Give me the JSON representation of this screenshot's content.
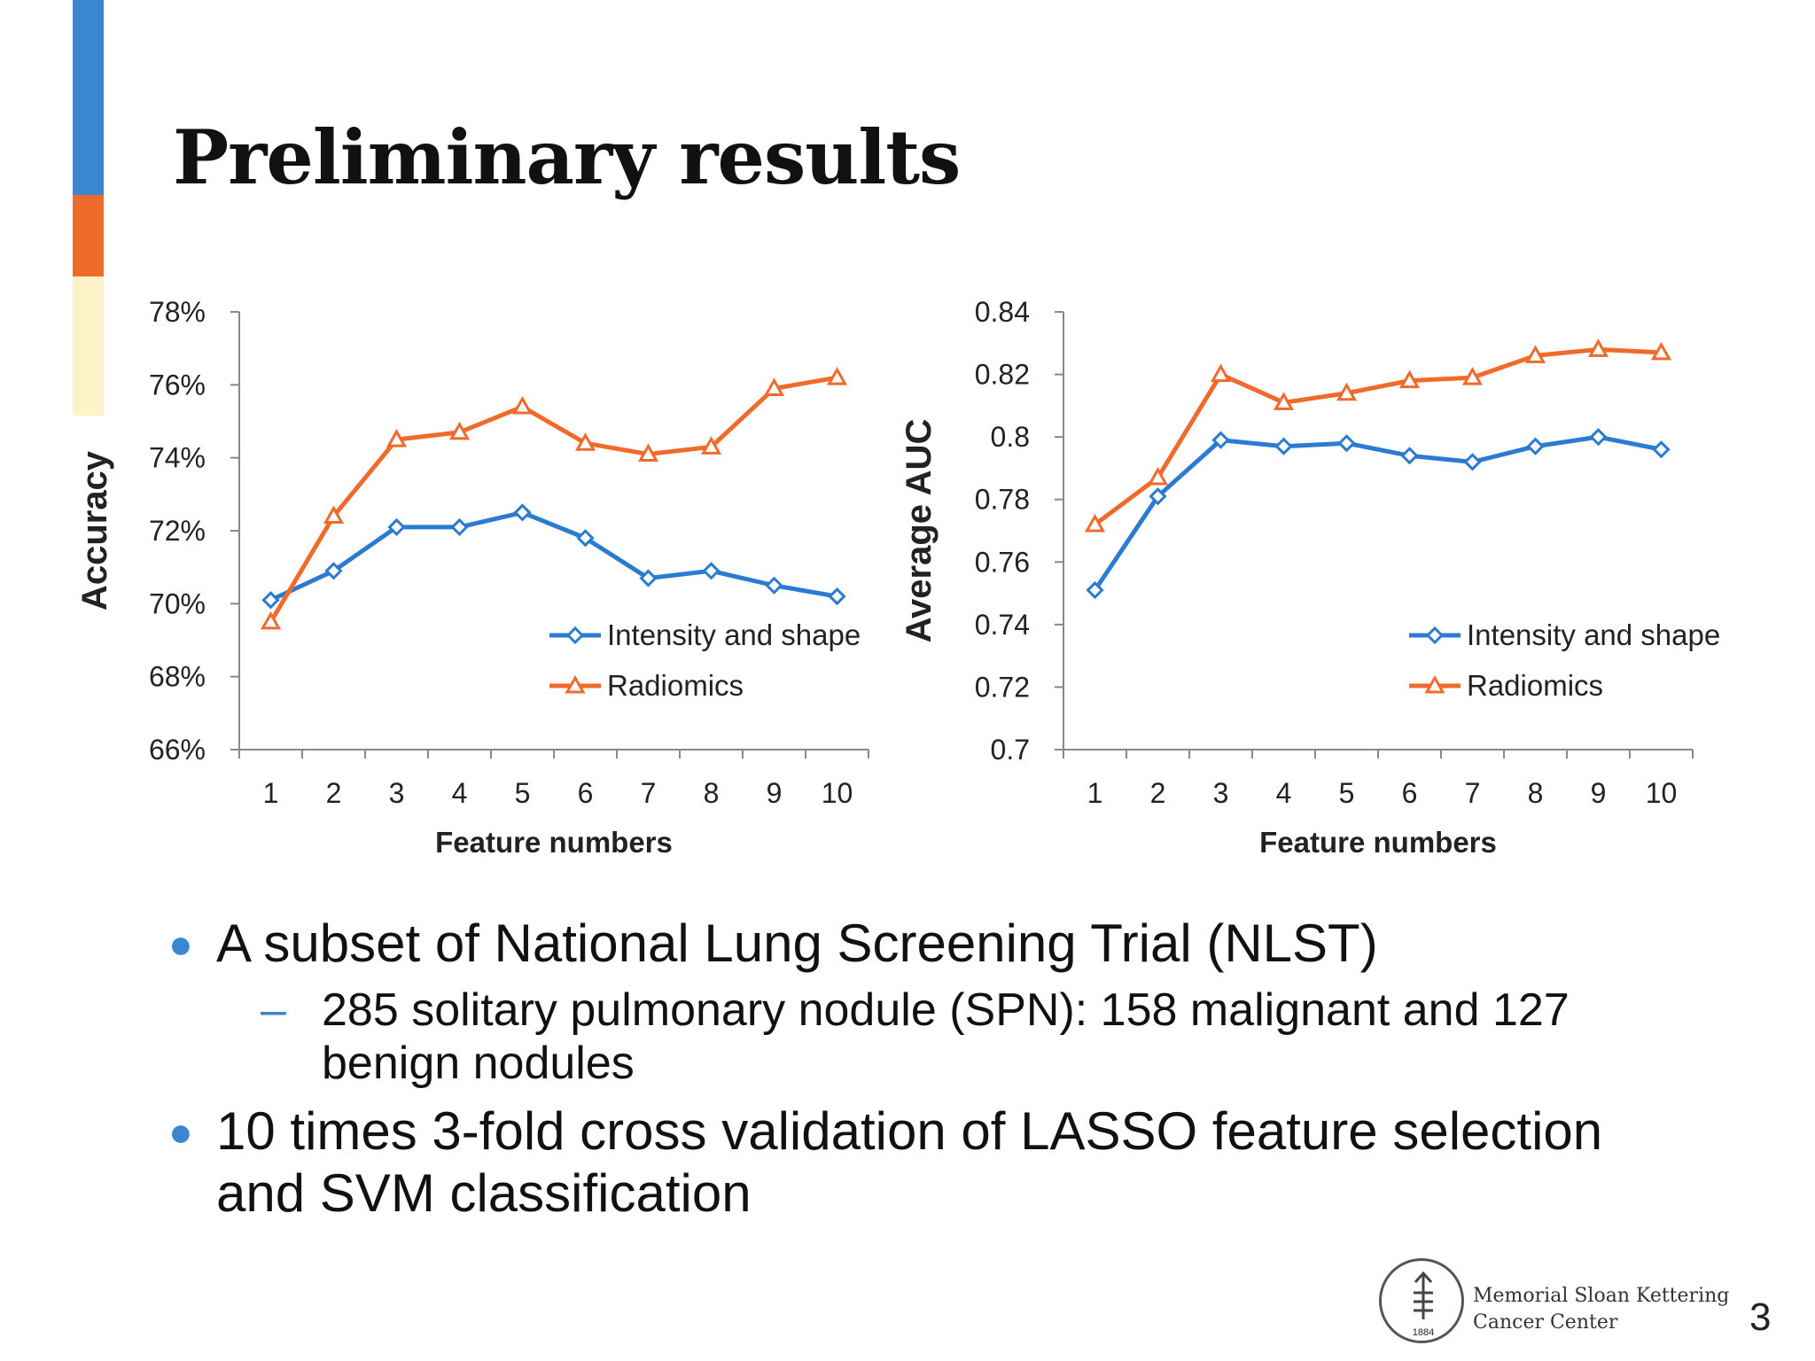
{
  "slide": {
    "title": "Preliminary results",
    "page_number": "3",
    "accent_colors": {
      "blue": "#3a86d0",
      "orange": "#f06a2c",
      "cream": "#fdf3c6"
    }
  },
  "bullets": [
    {
      "text": "A subset of National Lung Screening Trial (NLST)"
    },
    {
      "text": "10 times 3-fold cross validation of LASSO feature selection and SVM classification"
    }
  ],
  "sub_bullets": [
    {
      "text": "285 solitary pulmonary nodule (SPN): 158 malignant and 127 benign nodules"
    }
  ],
  "logo": {
    "line1": "Memorial Sloan Kettering",
    "line2": "Cancer Center",
    "seal_year": "1884"
  },
  "chart_data": [
    {
      "type": "line",
      "title": "",
      "xlabel": "Feature numbers",
      "ylabel": "Accuracy",
      "x": [
        1,
        2,
        3,
        4,
        5,
        6,
        7,
        8,
        9,
        10
      ],
      "ylim": [
        66,
        78
      ],
      "yticks": [
        "66%",
        "68%",
        "70%",
        "72%",
        "74%",
        "76%",
        "78%"
      ],
      "ytick_values": [
        66,
        68,
        70,
        72,
        74,
        76,
        78
      ],
      "grid": false,
      "legend_position": "bottom-right",
      "series": [
        {
          "name": "Intensity and shape",
          "color": "#2b7bd0",
          "marker": "diamond",
          "values": [
            70.1,
            70.9,
            72.1,
            72.1,
            72.5,
            71.8,
            70.7,
            70.9,
            70.5,
            70.2
          ]
        },
        {
          "name": "Radiomics",
          "color": "#f06a2c",
          "marker": "triangle",
          "values": [
            69.5,
            72.4,
            74.5,
            74.7,
            75.4,
            74.4,
            74.1,
            74.3,
            75.9,
            76.2
          ]
        }
      ]
    },
    {
      "type": "line",
      "title": "",
      "xlabel": "Feature numbers",
      "ylabel": "Average   AUC",
      "x": [
        1,
        2,
        3,
        4,
        5,
        6,
        7,
        8,
        9,
        10
      ],
      "ylim": [
        0.7,
        0.84
      ],
      "yticks": [
        "0.7",
        "0.72",
        "0.74",
        "0.76",
        "0.78",
        "0.8",
        "0.82",
        "0.84"
      ],
      "ytick_values": [
        0.7,
        0.72,
        0.74,
        0.76,
        0.78,
        0.8,
        0.82,
        0.84
      ],
      "grid": false,
      "legend_position": "bottom-right",
      "series": [
        {
          "name": "Intensity and shape",
          "color": "#2b7bd0",
          "marker": "diamond",
          "values": [
            0.751,
            0.781,
            0.799,
            0.797,
            0.798,
            0.794,
            0.792,
            0.797,
            0.8,
            0.796
          ]
        },
        {
          "name": "Radiomics",
          "color": "#f06a2c",
          "marker": "triangle",
          "values": [
            0.772,
            0.787,
            0.82,
            0.811,
            0.814,
            0.818,
            0.819,
            0.826,
            0.828,
            0.827
          ]
        }
      ]
    }
  ]
}
